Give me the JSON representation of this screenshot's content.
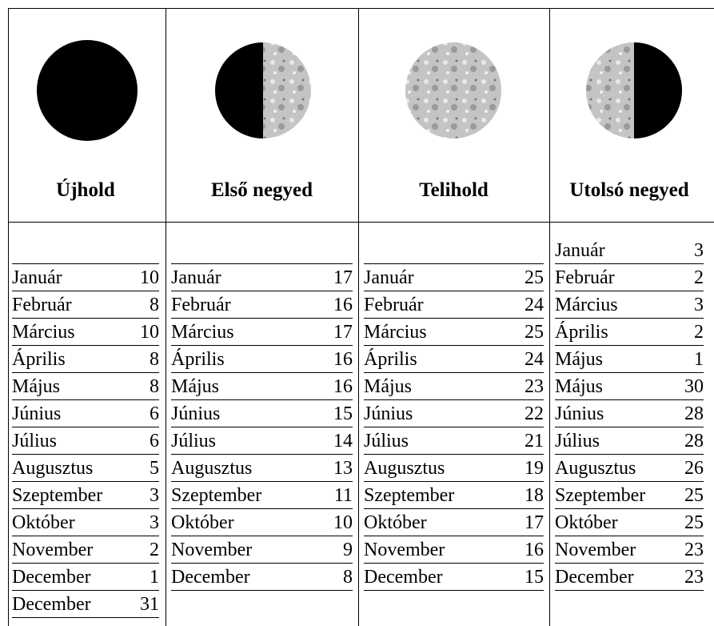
{
  "columns": [
    {
      "title": "Újhold",
      "rows": [
        {
          "month": "Január",
          "day": 10
        },
        {
          "month": "Február",
          "day": 8
        },
        {
          "month": "Március",
          "day": 10
        },
        {
          "month": "Április",
          "day": 8
        },
        {
          "month": "Május",
          "day": 8
        },
        {
          "month": "Június",
          "day": 6
        },
        {
          "month": "Július",
          "day": 6
        },
        {
          "month": "Augusztus",
          "day": 5
        },
        {
          "month": "Szeptember",
          "day": 3
        },
        {
          "month": "Október",
          "day": 3
        },
        {
          "month": "November",
          "day": 2
        },
        {
          "month": "December",
          "day": 1
        },
        {
          "month": "December",
          "day": 31
        }
      ]
    },
    {
      "title": "Első negyed",
      "rows": [
        {
          "month": "Január",
          "day": 17
        },
        {
          "month": "Február",
          "day": 16
        },
        {
          "month": "Március",
          "day": 17
        },
        {
          "month": "Április",
          "day": 16
        },
        {
          "month": "Május",
          "day": 16
        },
        {
          "month": "Június",
          "day": 15
        },
        {
          "month": "Július",
          "day": 14
        },
        {
          "month": "Augusztus",
          "day": 13
        },
        {
          "month": "Szeptember",
          "day": 11
        },
        {
          "month": "Október",
          "day": 10
        },
        {
          "month": "November",
          "day": 9
        },
        {
          "month": "December",
          "day": 8
        }
      ]
    },
    {
      "title": "Telihold",
      "rows": [
        {
          "month": "Január",
          "day": 25
        },
        {
          "month": "Február",
          "day": 24
        },
        {
          "month": "Március",
          "day": 25
        },
        {
          "month": "Április",
          "day": 24
        },
        {
          "month": "Május",
          "day": 23
        },
        {
          "month": "Június",
          "day": 22
        },
        {
          "month": "Július",
          "day": 21
        },
        {
          "month": "Augusztus",
          "day": 19
        },
        {
          "month": "Szeptember",
          "day": 18
        },
        {
          "month": "Október",
          "day": 17
        },
        {
          "month": "November",
          "day": 16
        },
        {
          "month": "December",
          "day": 15
        }
      ]
    },
    {
      "title": "Utolsó negyed",
      "rows": [
        {
          "month": "Január",
          "day": 3
        },
        {
          "month": "Február",
          "day": 2
        },
        {
          "month": "Március",
          "day": 3
        },
        {
          "month": "Április",
          "day": 2
        },
        {
          "month": "Május",
          "day": 1
        },
        {
          "month": "Május",
          "day": 30
        },
        {
          "month": "Június",
          "day": 28
        },
        {
          "month": "Július",
          "day": 28
        },
        {
          "month": "Augusztus",
          "day": 26
        },
        {
          "month": "Szeptember",
          "day": 25
        },
        {
          "month": "Október",
          "day": 25
        },
        {
          "month": "November",
          "day": 23
        },
        {
          "month": "December",
          "day": 23
        }
      ]
    }
  ]
}
